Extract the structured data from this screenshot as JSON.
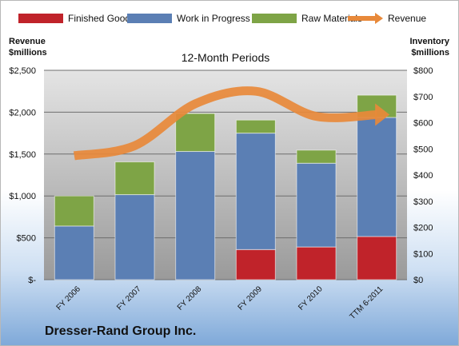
{
  "chart_data": {
    "type": "bar",
    "stacked": true,
    "title": "12-Month Periods",
    "ylabel_left": "Revenue\n$millions",
    "ylabel_right": "Inventory\n$millions",
    "categories": [
      "FY 2006",
      "FY 2007",
      "FY 2008",
      "FY 2009",
      "FY 2010",
      "TTM 6-2011"
    ],
    "series": [
      {
        "name": "Finished Goods",
        "axis": "right",
        "color": "#c0232a",
        "values": [
          0,
          0,
          0,
          115,
          125,
          165
        ]
      },
      {
        "name": "Work in Progress",
        "axis": "right",
        "color": "#5b7fb4",
        "values": [
          205,
          325,
          490,
          445,
          320,
          455
        ]
      },
      {
        "name": "Raw Materials",
        "axis": "right",
        "color": "#7ea446",
        "values": [
          115,
          125,
          145,
          50,
          50,
          85
        ]
      },
      {
        "name": "Revenue",
        "type": "line",
        "axis": "left",
        "color": "#e8893a",
        "values": [
          1480,
          1600,
          2100,
          2250,
          1950,
          1970
        ]
      }
    ],
    "ylim_left": [
      0,
      2500
    ],
    "ylim_right": [
      0,
      800
    ],
    "left_ticks": [
      "$-",
      "$500",
      "$1,000",
      "$1,500",
      "$2,000",
      "$2,500"
    ],
    "right_ticks": [
      "$0",
      "$100",
      "$200",
      "$300",
      "$400",
      "$500",
      "$600",
      "$700",
      "$800"
    ],
    "legend_position": "top",
    "grid": true
  },
  "footer": {
    "title": "Dresser-Rand Group Inc."
  }
}
